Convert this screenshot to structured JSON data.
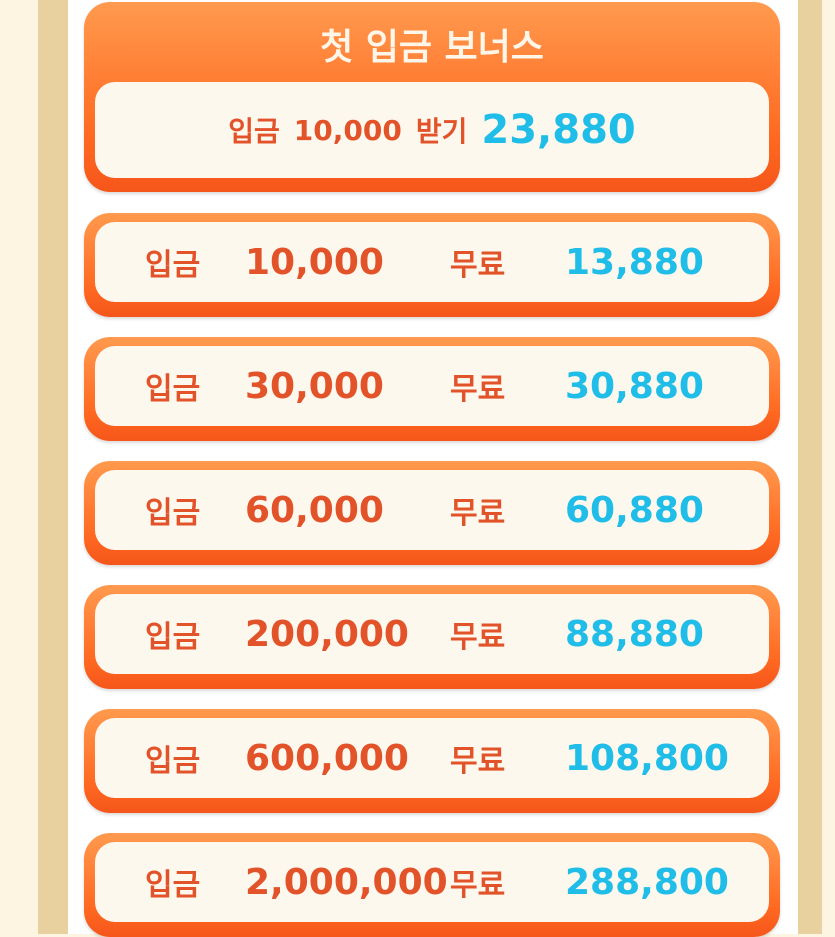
{
  "header": {
    "title": "첫 입금 보너스",
    "deposit_label": "입금",
    "deposit_amount": "10,000",
    "receive_label": "받기",
    "receive_amount": "23,880"
  },
  "rows": [
    {
      "label": "입금",
      "amount": "10,000",
      "free_label": "무료",
      "bonus": "13,880"
    },
    {
      "label": "입금",
      "amount": "30,000",
      "free_label": "무료",
      "bonus": "30,880"
    },
    {
      "label": "입금",
      "amount": "60,000",
      "free_label": "무료",
      "bonus": "60,880"
    },
    {
      "label": "입금",
      "amount": "200,000",
      "free_label": "무료",
      "bonus": "88,880"
    },
    {
      "label": "입금",
      "amount": "600,000",
      "free_label": "무료",
      "bonus": "108,800"
    },
    {
      "label": "입금",
      "amount": "2,000,000",
      "free_label": "무료",
      "bonus": "288,800"
    }
  ],
  "colors": {
    "orange": "#ff6a22",
    "text_red": "#e2532a",
    "text_blue": "#1fbde8",
    "cream": "#fdf8ee"
  }
}
